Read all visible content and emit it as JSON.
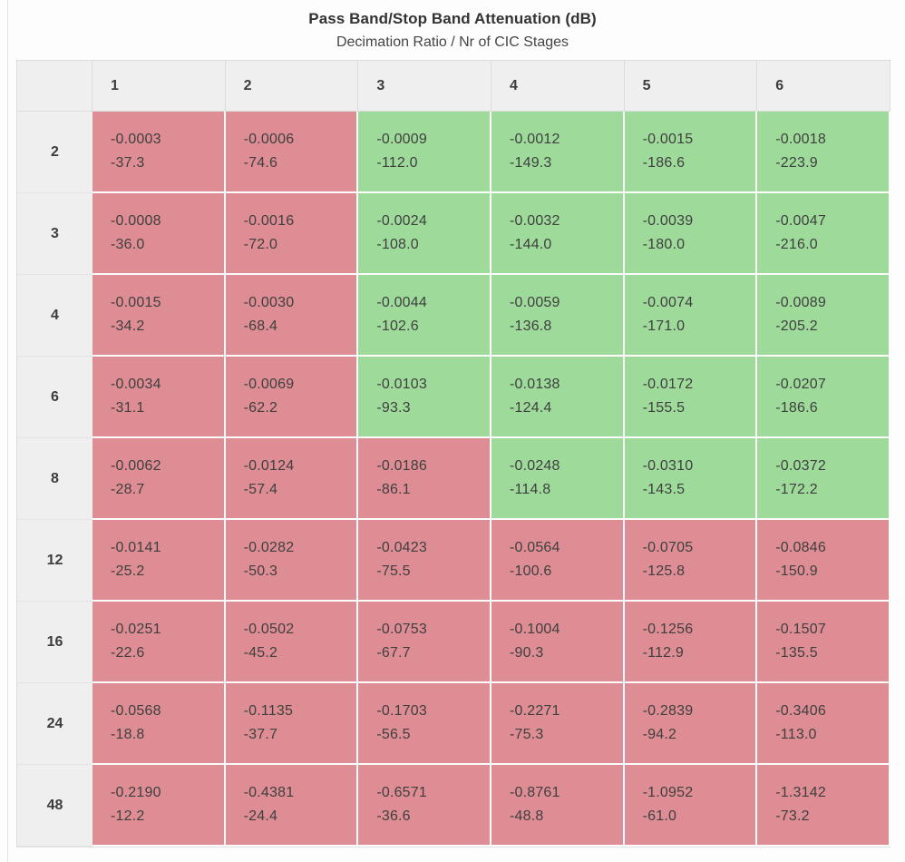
{
  "title": "Pass Band/Stop Band Attenuation (dB)",
  "subtitle": "Decimation Ratio / Nr of CIC Stages",
  "colors": {
    "green": "#9edb9b",
    "red": "#dd8d93",
    "header_bg": "#efefef",
    "header_border": "#dcdcdc",
    "cell_text": "#3f3f3f"
  },
  "chart_data": {
    "type": "heatmap",
    "title": "Pass Band/Stop Band Attenuation (dB)",
    "subtitle": "Decimation Ratio / Nr of CIC Stages",
    "row_axis_label": "Decimation Ratio",
    "col_axis_label": "Nr of CIC Stages",
    "cell_value_format": "pass_band_dB / stop_band_dB",
    "columns": [
      "1",
      "2",
      "3",
      "4",
      "5",
      "6"
    ],
    "rows": [
      {
        "label": "2",
        "cells": [
          {
            "pass_band": "-0.0003",
            "stop_band": "-37.3",
            "status": "red"
          },
          {
            "pass_band": "-0.0006",
            "stop_band": "-74.6",
            "status": "red"
          },
          {
            "pass_band": "-0.0009",
            "stop_band": "-112.0",
            "status": "green"
          },
          {
            "pass_band": "-0.0012",
            "stop_band": "-149.3",
            "status": "green"
          },
          {
            "pass_band": "-0.0015",
            "stop_band": "-186.6",
            "status": "green"
          },
          {
            "pass_band": "-0.0018",
            "stop_band": "-223.9",
            "status": "green"
          }
        ]
      },
      {
        "label": "3",
        "cells": [
          {
            "pass_band": "-0.0008",
            "stop_band": "-36.0",
            "status": "red"
          },
          {
            "pass_band": "-0.0016",
            "stop_band": "-72.0",
            "status": "red"
          },
          {
            "pass_band": "-0.0024",
            "stop_band": "-108.0",
            "status": "green"
          },
          {
            "pass_band": "-0.0032",
            "stop_band": "-144.0",
            "status": "green"
          },
          {
            "pass_band": "-0.0039",
            "stop_band": "-180.0",
            "status": "green"
          },
          {
            "pass_band": "-0.0047",
            "stop_band": "-216.0",
            "status": "green"
          }
        ]
      },
      {
        "label": "4",
        "cells": [
          {
            "pass_band": "-0.0015",
            "stop_band": "-34.2",
            "status": "red"
          },
          {
            "pass_band": "-0.0030",
            "stop_band": "-68.4",
            "status": "red"
          },
          {
            "pass_band": "-0.0044",
            "stop_band": "-102.6",
            "status": "green"
          },
          {
            "pass_band": "-0.0059",
            "stop_band": "-136.8",
            "status": "green"
          },
          {
            "pass_band": "-0.0074",
            "stop_band": "-171.0",
            "status": "green"
          },
          {
            "pass_band": "-0.0089",
            "stop_band": "-205.2",
            "status": "green"
          }
        ]
      },
      {
        "label": "6",
        "cells": [
          {
            "pass_band": "-0.0034",
            "stop_band": "-31.1",
            "status": "red"
          },
          {
            "pass_band": "-0.0069",
            "stop_band": "-62.2",
            "status": "red"
          },
          {
            "pass_band": "-0.0103",
            "stop_band": "-93.3",
            "status": "green"
          },
          {
            "pass_band": "-0.0138",
            "stop_band": "-124.4",
            "status": "green"
          },
          {
            "pass_band": "-0.0172",
            "stop_band": "-155.5",
            "status": "green"
          },
          {
            "pass_band": "-0.0207",
            "stop_band": "-186.6",
            "status": "green"
          }
        ]
      },
      {
        "label": "8",
        "cells": [
          {
            "pass_band": "-0.0062",
            "stop_band": "-28.7",
            "status": "red"
          },
          {
            "pass_band": "-0.0124",
            "stop_band": "-57.4",
            "status": "red"
          },
          {
            "pass_band": "-0.0186",
            "stop_band": "-86.1",
            "status": "red"
          },
          {
            "pass_band": "-0.0248",
            "stop_band": "-114.8",
            "status": "green"
          },
          {
            "pass_band": "-0.0310",
            "stop_band": "-143.5",
            "status": "green"
          },
          {
            "pass_band": "-0.0372",
            "stop_band": "-172.2",
            "status": "green"
          }
        ]
      },
      {
        "label": "12",
        "cells": [
          {
            "pass_band": "-0.0141",
            "stop_band": "-25.2",
            "status": "red"
          },
          {
            "pass_band": "-0.0282",
            "stop_band": "-50.3",
            "status": "red"
          },
          {
            "pass_band": "-0.0423",
            "stop_band": "-75.5",
            "status": "red"
          },
          {
            "pass_band": "-0.0564",
            "stop_band": "-100.6",
            "status": "red"
          },
          {
            "pass_band": "-0.0705",
            "stop_band": "-125.8",
            "status": "red"
          },
          {
            "pass_band": "-0.0846",
            "stop_band": "-150.9",
            "status": "red"
          }
        ]
      },
      {
        "label": "16",
        "cells": [
          {
            "pass_band": "-0.0251",
            "stop_band": "-22.6",
            "status": "red"
          },
          {
            "pass_band": "-0.0502",
            "stop_band": "-45.2",
            "status": "red"
          },
          {
            "pass_band": "-0.0753",
            "stop_band": "-67.7",
            "status": "red"
          },
          {
            "pass_band": "-0.1004",
            "stop_band": "-90.3",
            "status": "red"
          },
          {
            "pass_band": "-0.1256",
            "stop_band": "-112.9",
            "status": "red"
          },
          {
            "pass_band": "-0.1507",
            "stop_band": "-135.5",
            "status": "red"
          }
        ]
      },
      {
        "label": "24",
        "cells": [
          {
            "pass_band": "-0.0568",
            "stop_band": "-18.8",
            "status": "red"
          },
          {
            "pass_band": "-0.1135",
            "stop_band": "-37.7",
            "status": "red"
          },
          {
            "pass_band": "-0.1703",
            "stop_band": "-56.5",
            "status": "red"
          },
          {
            "pass_band": "-0.2271",
            "stop_band": "-75.3",
            "status": "red"
          },
          {
            "pass_band": "-0.2839",
            "stop_band": "-94.2",
            "status": "red"
          },
          {
            "pass_band": "-0.3406",
            "stop_band": "-113.0",
            "status": "red"
          }
        ]
      },
      {
        "label": "48",
        "cells": [
          {
            "pass_band": "-0.2190",
            "stop_band": "-12.2",
            "status": "red"
          },
          {
            "pass_band": "-0.4381",
            "stop_band": "-24.4",
            "status": "red"
          },
          {
            "pass_band": "-0.6571",
            "stop_band": "-36.6",
            "status": "red"
          },
          {
            "pass_band": "-0.8761",
            "stop_band": "-48.8",
            "status": "red"
          },
          {
            "pass_band": "-1.0952",
            "stop_band": "-61.0",
            "status": "red"
          },
          {
            "pass_band": "-1.3142",
            "stop_band": "-73.2",
            "status": "red"
          }
        ]
      }
    ]
  }
}
